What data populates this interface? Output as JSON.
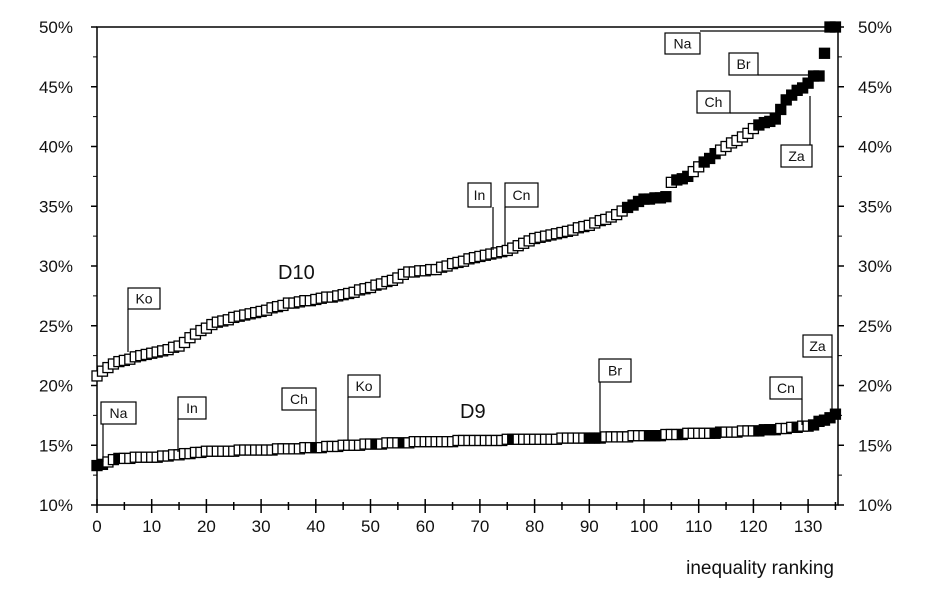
{
  "chart_data": {
    "type": "scatter",
    "xlabel": "inequality ranking",
    "ylabel": "",
    "xlim": [
      0,
      135
    ],
    "ylim": [
      10,
      50
    ],
    "x_ticks": [
      0,
      10,
      20,
      30,
      40,
      50,
      60,
      70,
      80,
      90,
      100,
      110,
      120,
      130
    ],
    "y_ticks": [
      10,
      15,
      20,
      25,
      30,
      35,
      40,
      45,
      50
    ],
    "y_tick_labels": [
      "10%",
      "15%",
      "20%",
      "25%",
      "30%",
      "35%",
      "40%",
      "45%",
      "50%"
    ],
    "grid": false,
    "series": [
      {
        "name": "D10",
        "values": [
          20.8,
          21.2,
          21.5,
          21.8,
          22.0,
          22.1,
          22.2,
          22.4,
          22.5,
          22.6,
          22.7,
          22.8,
          22.9,
          23.0,
          23.2,
          23.3,
          23.6,
          24.0,
          24.3,
          24.6,
          24.8,
          25.1,
          25.3,
          25.4,
          25.5,
          25.7,
          25.8,
          25.9,
          26.0,
          26.1,
          26.2,
          26.3,
          26.5,
          26.6,
          26.7,
          26.9,
          26.9,
          27.0,
          27.1,
          27.1,
          27.2,
          27.3,
          27.4,
          27.4,
          27.5,
          27.6,
          27.7,
          27.8,
          28.0,
          28.1,
          28.2,
          28.4,
          28.5,
          28.7,
          28.8,
          29.0,
          29.3,
          29.5,
          29.5,
          29.6,
          29.6,
          29.7,
          29.7,
          29.9,
          30.0,
          30.2,
          30.3,
          30.4,
          30.6,
          30.7,
          30.8,
          30.9,
          31.0,
          31.1,
          31.2,
          31.3,
          31.5,
          31.7,
          31.9,
          32.1,
          32.3,
          32.4,
          32.5,
          32.6,
          32.7,
          32.8,
          32.9,
          33.0,
          33.2,
          33.3,
          33.4,
          33.6,
          33.8,
          33.9,
          34.1,
          34.3,
          34.6,
          34.9,
          35.1,
          35.4,
          35.6,
          35.6,
          35.7,
          35.7,
          35.8,
          37.0,
          37.2,
          37.3,
          37.5,
          37.9,
          38.3,
          38.7,
          39.0,
          39.4,
          39.7,
          40.0,
          40.3,
          40.5,
          40.8,
          41.1,
          41.5,
          41.8,
          42.0,
          42.1,
          42.3,
          43.1,
          43.9,
          44.3,
          44.7,
          44.9,
          45.3,
          45.9,
          45.9,
          47.8,
          50.0,
          50.0
        ],
        "filled_ranks": [
          97,
          98,
          99,
          100,
          101,
          102,
          103,
          104,
          106,
          107,
          108,
          111,
          112,
          113,
          121,
          122,
          123,
          124,
          125,
          126,
          127,
          128,
          129,
          130,
          131,
          132,
          133,
          134,
          135
        ],
        "annotations": [
          {
            "text": "Ko",
            "rank": 6
          },
          {
            "text": "In",
            "rank": 72
          },
          {
            "text": "Cn",
            "rank": 75
          },
          {
            "text": "Na",
            "rank": 134
          },
          {
            "text": "Br",
            "rank": 132
          },
          {
            "text": "Ch",
            "rank": 124
          },
          {
            "text": "Za",
            "rank": 130
          }
        ]
      },
      {
        "name": "D9",
        "values": [
          13.3,
          13.4,
          13.6,
          13.8,
          13.9,
          13.9,
          13.9,
          14.0,
          14.0,
          14.0,
          14.0,
          14.0,
          14.1,
          14.1,
          14.2,
          14.2,
          14.3,
          14.3,
          14.4,
          14.4,
          14.5,
          14.5,
          14.5,
          14.5,
          14.5,
          14.5,
          14.6,
          14.6,
          14.6,
          14.6,
          14.6,
          14.6,
          14.6,
          14.7,
          14.7,
          14.7,
          14.7,
          14.7,
          14.8,
          14.8,
          14.8,
          14.8,
          14.9,
          14.9,
          14.9,
          15.0,
          15.0,
          15.0,
          15.0,
          15.1,
          15.1,
          15.1,
          15.1,
          15.2,
          15.2,
          15.2,
          15.2,
          15.2,
          15.3,
          15.3,
          15.3,
          15.3,
          15.3,
          15.3,
          15.3,
          15.3,
          15.4,
          15.4,
          15.4,
          15.4,
          15.4,
          15.4,
          15.4,
          15.4,
          15.4,
          15.5,
          15.5,
          15.5,
          15.5,
          15.5,
          15.5,
          15.5,
          15.5,
          15.5,
          15.5,
          15.6,
          15.6,
          15.6,
          15.6,
          15.6,
          15.6,
          15.6,
          15.6,
          15.7,
          15.7,
          15.7,
          15.7,
          15.7,
          15.8,
          15.8,
          15.8,
          15.8,
          15.8,
          15.8,
          15.9,
          15.9,
          15.9,
          15.9,
          16.0,
          16.0,
          16.0,
          16.0,
          16.0,
          16.0,
          16.1,
          16.1,
          16.1,
          16.1,
          16.2,
          16.2,
          16.2,
          16.2,
          16.3,
          16.3,
          16.3,
          16.4,
          16.4,
          16.5,
          16.5,
          16.6,
          16.6,
          16.7,
          17.0,
          17.1,
          17.3,
          17.6
        ],
        "filled_ranks": [
          0,
          1,
          4,
          40,
          51,
          56,
          76,
          90,
          91,
          92,
          101,
          102,
          103,
          107,
          113,
          114,
          121,
          122,
          123,
          124,
          128,
          131,
          132,
          133,
          134,
          135
        ],
        "annotations": [
          {
            "text": "Na",
            "rank": 1
          },
          {
            "text": "In",
            "rank": 15
          },
          {
            "text": "Ch",
            "rank": 40
          },
          {
            "text": "Ko",
            "rank": 46
          },
          {
            "text": "Br",
            "rank": 92
          },
          {
            "text": "Cn",
            "rank": 128
          },
          {
            "text": "Za",
            "rank": 134
          }
        ]
      }
    ]
  }
}
